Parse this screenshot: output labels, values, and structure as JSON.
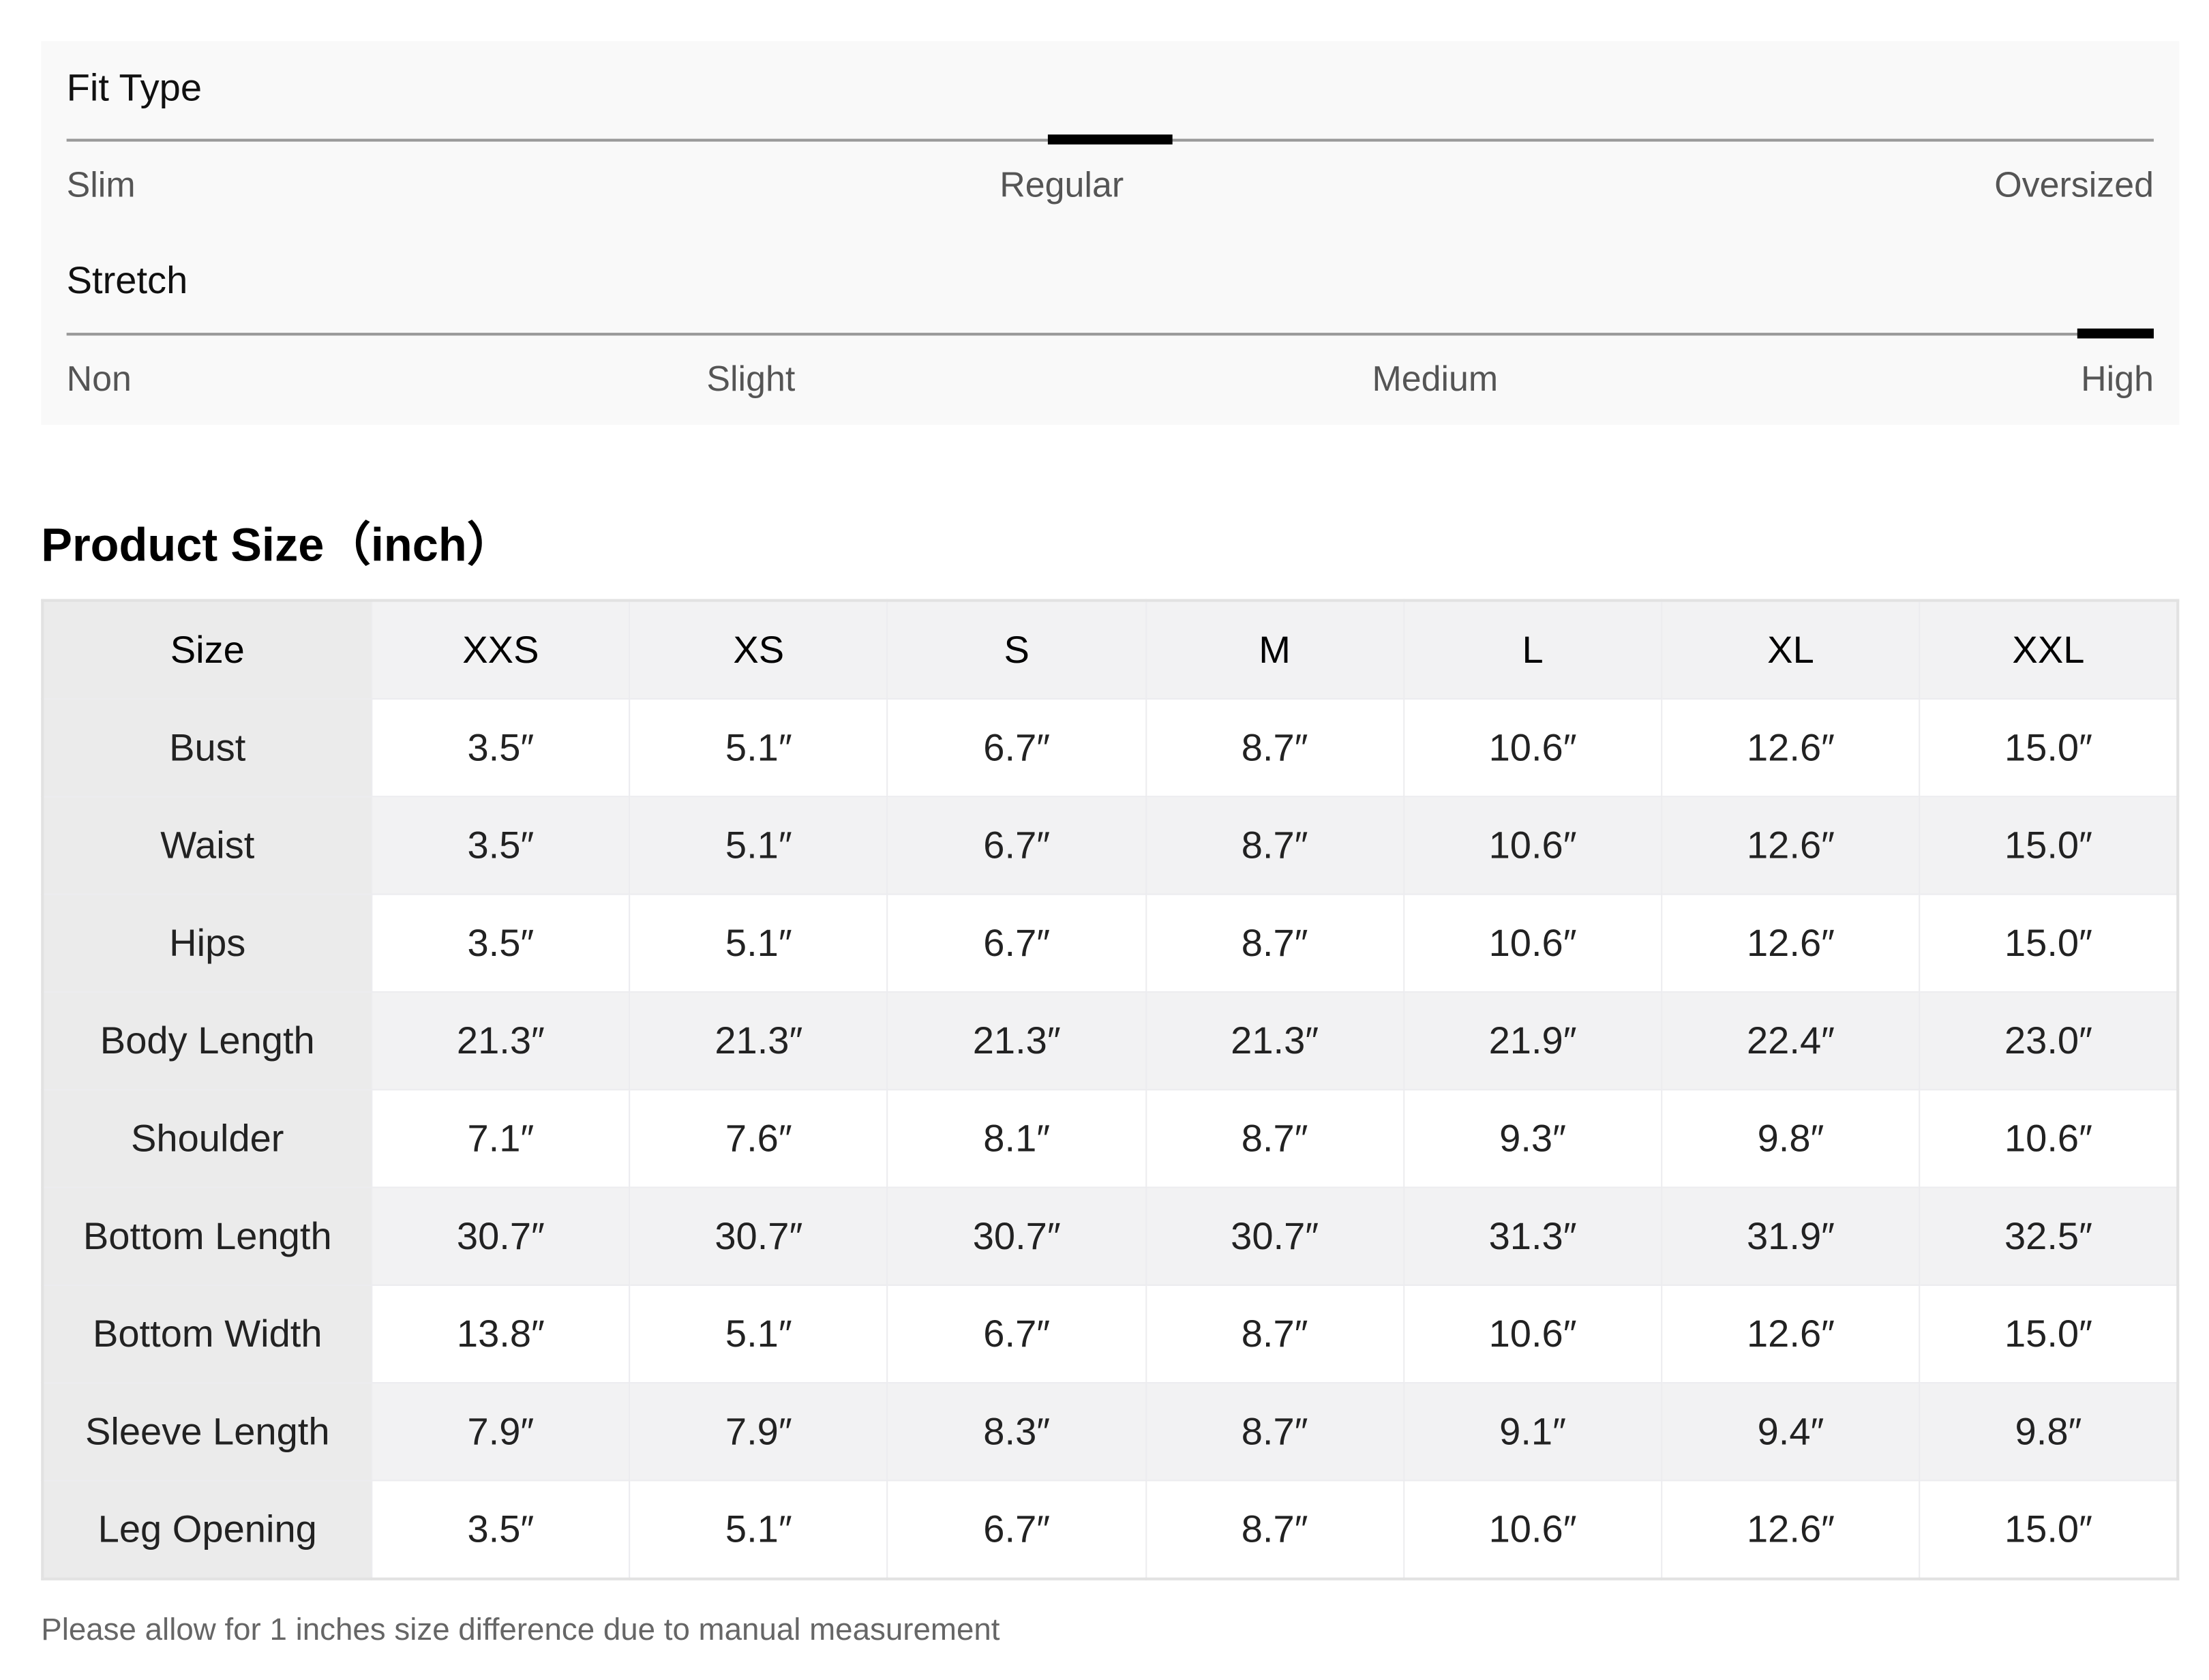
{
  "fit_type": {
    "title": "Fit Type",
    "labels": [
      "Slim",
      "Regular",
      "Oversized"
    ],
    "selected": "Regular",
    "selected_fraction": 0.5
  },
  "stretch": {
    "title": "Stretch",
    "labels": [
      "Non",
      "Slight",
      "Medium",
      "High"
    ],
    "selected": "High",
    "selected_fraction": 1.0
  },
  "product_size": {
    "heading": "Product Size（inch）",
    "columns": [
      "Size",
      "XXS",
      "XS",
      "S",
      "M",
      "L",
      "XL",
      "XXL"
    ],
    "rows": [
      {
        "label": "Bust",
        "values": [
          "3.5″",
          "5.1″",
          "6.7″",
          "8.7″",
          "10.6″",
          "12.6″",
          "15.0″"
        ]
      },
      {
        "label": "Waist",
        "values": [
          "3.5″",
          "5.1″",
          "6.7″",
          "8.7″",
          "10.6″",
          "12.6″",
          "15.0″"
        ]
      },
      {
        "label": "Hips",
        "values": [
          "3.5″",
          "5.1″",
          "6.7″",
          "8.7″",
          "10.6″",
          "12.6″",
          "15.0″"
        ]
      },
      {
        "label": "Body Length",
        "values": [
          "21.3″",
          "21.3″",
          "21.3″",
          "21.3″",
          "21.9″",
          "22.4″",
          "23.0″"
        ]
      },
      {
        "label": "Shoulder",
        "values": [
          "7.1″",
          "7.6″",
          "8.1″",
          "8.7″",
          "9.3″",
          "9.8″",
          "10.6″"
        ]
      },
      {
        "label": "Bottom Length",
        "values": [
          "30.7″",
          "30.7″",
          "30.7″",
          "30.7″",
          "31.3″",
          "31.9″",
          "32.5″"
        ]
      },
      {
        "label": "Bottom Width",
        "values": [
          "13.8″",
          "5.1″",
          "6.7″",
          "8.7″",
          "10.6″",
          "12.6″",
          "15.0″"
        ]
      },
      {
        "label": "Sleeve Length",
        "values": [
          "7.9″",
          "7.9″",
          "8.3″",
          "8.7″",
          "9.1″",
          "9.4″",
          "9.8″"
        ]
      },
      {
        "label": "Leg Opening",
        "values": [
          "3.5″",
          "5.1″",
          "6.7″",
          "8.7″",
          "10.6″",
          "12.6″",
          "15.0″"
        ]
      }
    ],
    "note": "Please allow for 1 inches size difference due to manual measurement"
  }
}
